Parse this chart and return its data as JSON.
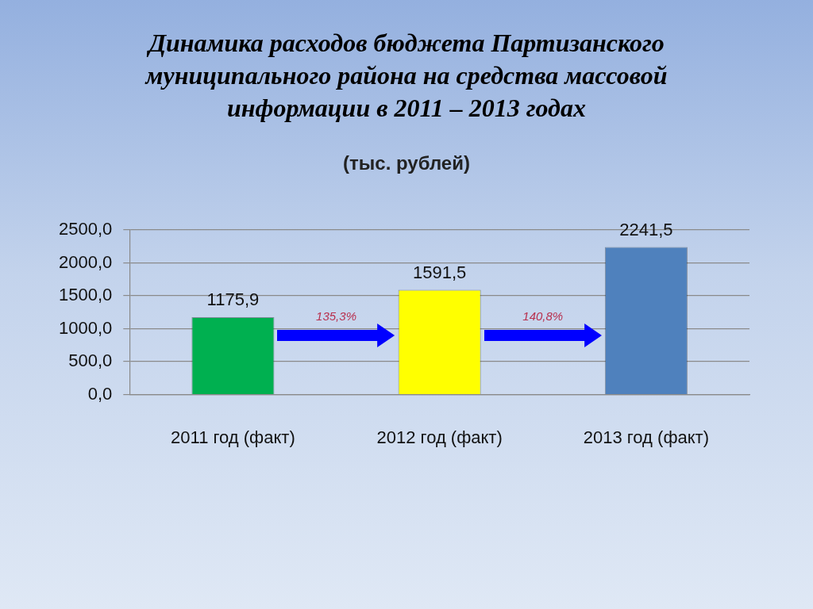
{
  "chart_data": {
    "type": "bar",
    "title": "Динамика расходов бюджета Партизанского муниципального района на средства массовой информации в 2011 – 2013 годах",
    "subtitle": "(тыс. рублей)",
    "categories": [
      "2011 год (факт)",
      "2012 год (факт)",
      "2013 год (факт)"
    ],
    "values": [
      1175.9,
      1591.5,
      2241.5
    ],
    "value_labels": [
      "1175,9",
      "1591,5",
      "2241,5"
    ],
    "colors": [
      "#00b050",
      "#ffff00",
      "#4f81bd"
    ],
    "ylim": [
      0,
      2500
    ],
    "yticks": [
      {
        "value": 0,
        "label": "0,0"
      },
      {
        "value": 500,
        "label": "500,0"
      },
      {
        "value": 1000,
        "label": "1000,0"
      },
      {
        "value": 1500,
        "label": "1500,0"
      },
      {
        "value": 2000,
        "label": "2000,0"
      },
      {
        "value": 2500,
        "label": "2500,0"
      }
    ],
    "grid": "y",
    "annotations": [
      "135,3%",
      "140,8%"
    ]
  }
}
